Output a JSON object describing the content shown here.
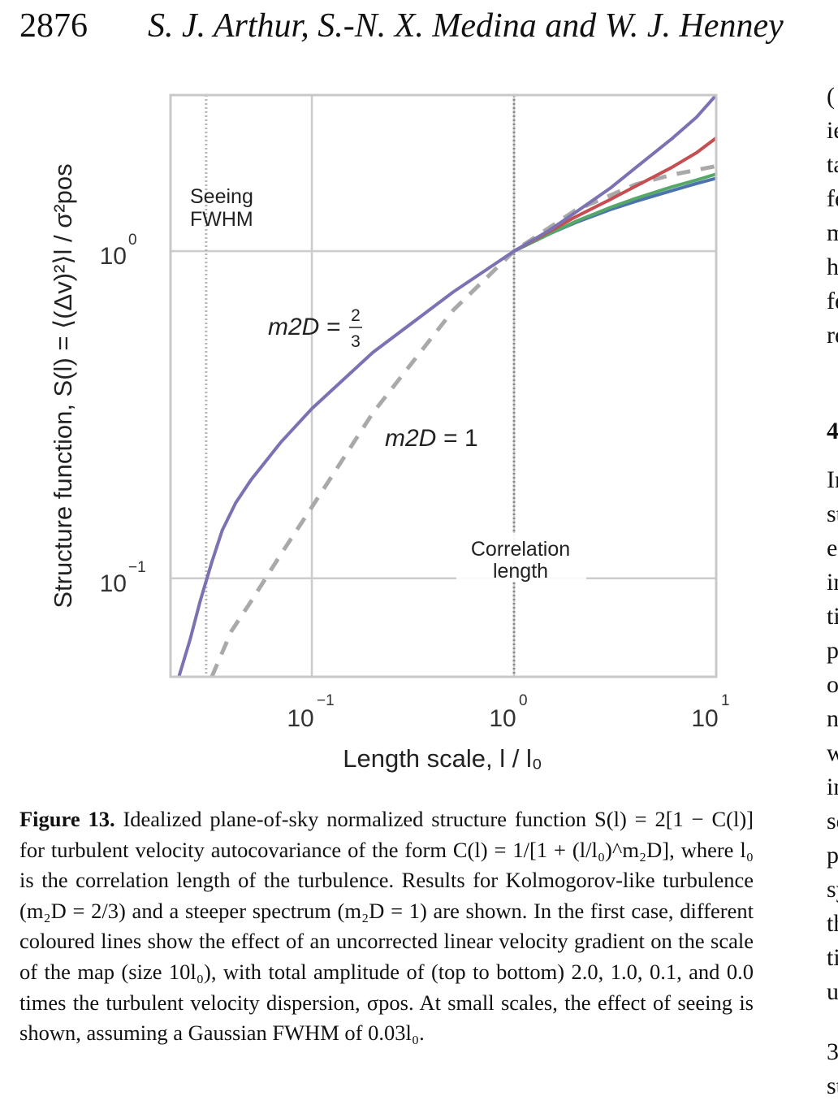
{
  "header": {
    "page_number": "2876",
    "authors": "S. J. Arthur, S.-N. X. Medina and W. J. Henney"
  },
  "figure": {
    "caption_label": "Figure 13.",
    "caption_text": "Idealized plane-of-sky normalized structure function S(l) = 2[1 − C(l)] for turbulent velocity autocovariance of the form C(l) = 1/[1 + (l/l₀)^m₂D], where l₀ is the correlation length of the turbulence. Results for Kolmogorov-like turbulence (m₂D = 2/3) and a steeper spectrum (m₂D = 1) are shown. In the first case, different coloured lines show the effect of an uncorrected linear velocity gradient on the scale of the map (size 10l₀), with total amplitude of (top to bottom) 2.0, 1.0, 0.1, and 0.0 times the turbulent velocity dispersion, σpos. At small scales, the effect of seeing is shown, assuming a Gaussian FWHM of 0.03l₀."
  },
  "chart_data": {
    "type": "line",
    "xlabel": "Length scale, l / l₀",
    "ylabel": "Structure function, S(l) = ⟨(Δv)²⟩l / σ²pos",
    "xscale": "log",
    "yscale": "log",
    "xlim": [
      0.02,
      10
    ],
    "ylim": [
      0.05,
      3
    ],
    "grid": true,
    "xticks": [
      {
        "value": 0.1,
        "base": "10",
        "exp": "−1"
      },
      {
        "value": 1,
        "base": "10",
        "exp": "0"
      },
      {
        "value": 10,
        "base": "10",
        "exp": "1"
      }
    ],
    "yticks": [
      {
        "value": 0.1,
        "base": "10",
        "exp": "−1"
      },
      {
        "value": 1,
        "base": "10",
        "exp": "0"
      }
    ],
    "series": [
      {
        "label_prefix": "m2D = ",
        "label_fraction": [
          "2",
          "3"
        ],
        "color": "#7b72b4",
        "style": "solid",
        "x": [
          0.022,
          0.025,
          0.028,
          0.032,
          0.036,
          0.042,
          0.05,
          0.07,
          0.1,
          0.2,
          0.5,
          1.0,
          1.5,
          2,
          3,
          4,
          6,
          8,
          10
        ],
        "y": [
          0.05,
          0.065,
          0.085,
          0.112,
          0.14,
          0.17,
          0.2,
          0.26,
          0.33,
          0.49,
          0.75,
          1.0,
          1.16,
          1.31,
          1.56,
          1.8,
          2.2,
          2.57,
          3.0
        ]
      },
      {
        "color": "#c44e52",
        "style": "solid",
        "x": [
          1.0,
          1.5,
          2,
          3,
          4,
          6,
          8,
          10
        ],
        "y": [
          1.0,
          1.15,
          1.27,
          1.44,
          1.58,
          1.8,
          2.0,
          2.22
        ]
      },
      {
        "color": "#55a868",
        "style": "solid",
        "x": [
          1.0,
          1.5,
          2,
          3,
          4,
          6,
          8,
          10
        ],
        "y": [
          1.0,
          1.13,
          1.23,
          1.36,
          1.45,
          1.57,
          1.65,
          1.72
        ]
      },
      {
        "color": "#4c72b0",
        "style": "solid",
        "x": [
          1.0,
          1.5,
          2,
          3,
          4,
          6,
          8,
          10
        ],
        "y": [
          1.0,
          1.13,
          1.22,
          1.34,
          1.42,
          1.53,
          1.61,
          1.67
        ]
      },
      {
        "label_prefix": "m2D = ",
        "label_value": "1",
        "color": "#a9a9a9",
        "style": "dashed",
        "x": [
          0.032,
          0.04,
          0.05,
          0.07,
          0.1,
          0.2,
          0.5,
          1.0,
          2,
          4,
          6,
          10
        ],
        "y": [
          0.05,
          0.069,
          0.085,
          0.118,
          0.165,
          0.32,
          0.66,
          1.0,
          1.33,
          1.6,
          1.71,
          1.82
        ]
      }
    ],
    "annotations": [
      {
        "text_lines": [
          "Seeing",
          "FWHM"
        ],
        "x": 0.03
      },
      {
        "text_lines": [
          "Correlation",
          "length"
        ],
        "x": 1.0
      }
    ]
  },
  "right_column_fragments": [
    "(",
    "ie",
    "ta",
    "fe",
    "m",
    "h",
    "fe",
    "re",
    "4",
    "In",
    "st",
    "e",
    "in",
    "ti",
    "p",
    "o",
    "n",
    "w",
    "in",
    "se",
    "p",
    "sy",
    "th",
    "ti",
    "u",
    "3",
    "st"
  ],
  "colors": {
    "grid": "#cccccc",
    "axis_frame": "#c8c8c8",
    "text": "#333333"
  }
}
